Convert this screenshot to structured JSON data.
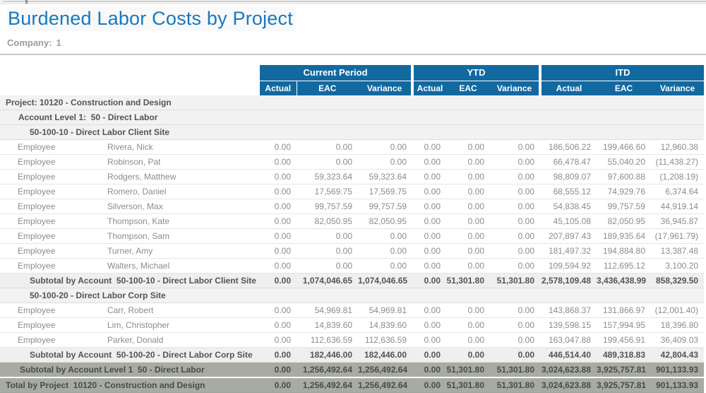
{
  "page": {
    "title": "Burdened Labor Costs by Project",
    "company_label": "Company:",
    "company_value": "1"
  },
  "colors": {
    "title_blue": "#1878be",
    "header_blue": "#1269a0",
    "grand_total_gray": "#a8aba2",
    "section_gray": "#f2f2f2"
  },
  "table": {
    "groups": [
      {
        "label": "Current Period"
      },
      {
        "label": "YTD"
      },
      {
        "label": "ITD"
      }
    ],
    "columns": [
      "Actual",
      "EAC",
      "Variance",
      "Actual",
      "EAC",
      "Variance",
      "Actual",
      "EAC",
      "Variance"
    ],
    "rows": [
      {
        "type": "project",
        "label": "Project: 10120 - Construction and Design"
      },
      {
        "type": "account-level",
        "label": "Account Level 1:  50 - Direct Labor"
      },
      {
        "type": "account",
        "label": "50-100-10 - Direct Labor Client Site"
      },
      {
        "type": "employee",
        "category": "Employee",
        "name": "Rivera, Nick",
        "values": [
          "0.00",
          "0.00",
          "0.00",
          "0.00",
          "0.00",
          "0.00",
          "186,506.22",
          "199,466.60",
          "12,960.38"
        ]
      },
      {
        "type": "employee",
        "category": "Employee",
        "name": "Robinson, Pat",
        "values": [
          "0.00",
          "0.00",
          "0.00",
          "0.00",
          "0.00",
          "0.00",
          "66,478.47",
          "55,040.20",
          "(11,438.27)"
        ]
      },
      {
        "type": "employee",
        "category": "Employee",
        "name": "Rodgers, Matthew",
        "values": [
          "0.00",
          "59,323.64",
          "59,323.64",
          "0.00",
          "0.00",
          "0.00",
          "98,809.07",
          "97,600.88",
          "(1,208.19)"
        ]
      },
      {
        "type": "employee",
        "category": "Employee",
        "name": "Romero, Daniel",
        "values": [
          "0.00",
          "17,569.75",
          "17,569.75",
          "0.00",
          "0.00",
          "0.00",
          "68,555.12",
          "74,929.76",
          "6,374.64"
        ]
      },
      {
        "type": "employee",
        "category": "Employee",
        "name": "Silverson, Max",
        "values": [
          "0.00",
          "99,757.59",
          "99,757.59",
          "0.00",
          "0.00",
          "0.00",
          "54,838.45",
          "99,757.59",
          "44,919.14"
        ]
      },
      {
        "type": "employee",
        "category": "Employee",
        "name": "Thompson, Kate",
        "values": [
          "0.00",
          "82,050.95",
          "82,050.95",
          "0.00",
          "0.00",
          "0.00",
          "45,105.08",
          "82,050.95",
          "36,945.87"
        ]
      },
      {
        "type": "employee",
        "category": "Employee",
        "name": "Thompson, Sam",
        "values": [
          "0.00",
          "0.00",
          "0.00",
          "0.00",
          "0.00",
          "0.00",
          "207,897.43",
          "189,935.64",
          "(17,961.79)"
        ]
      },
      {
        "type": "employee",
        "category": "Employee",
        "name": "Turner, Amy",
        "values": [
          "0.00",
          "0.00",
          "0.00",
          "0.00",
          "0.00",
          "0.00",
          "181,497.32",
          "194,884.80",
          "13,387.48"
        ]
      },
      {
        "type": "employee",
        "category": "Employee",
        "name": "Walters, Michael",
        "values": [
          "0.00",
          "0.00",
          "0.00",
          "0.00",
          "0.00",
          "0.00",
          "109,594.92",
          "112,695.12",
          "3,100.20"
        ]
      },
      {
        "type": "subtotal",
        "label": "Subtotal by Account  50-100-10 - Direct Labor Client Site",
        "values": [
          "0.00",
          "1,074,046.65",
          "1,074,046.65",
          "0.00",
          "51,301.80",
          "51,301.80",
          "2,578,109.48",
          "3,436,438.99",
          "858,329.50"
        ]
      },
      {
        "type": "account",
        "label": "50-100-20 - Direct Labor Corp Site"
      },
      {
        "type": "employee",
        "category": "Employee",
        "name": "Carr, Robert",
        "values": [
          "0.00",
          "54,969.81",
          "54,969.81",
          "0.00",
          "0.00",
          "0.00",
          "143,868.37",
          "131,866.97",
          "(12,001.40)"
        ]
      },
      {
        "type": "employee",
        "category": "Employee",
        "name": "Lim, Christopher",
        "values": [
          "0.00",
          "14,839.60",
          "14,839.60",
          "0.00",
          "0.00",
          "0.00",
          "139,598.15",
          "157,994.95",
          "18,396.80"
        ]
      },
      {
        "type": "employee",
        "category": "Employee",
        "name": "Parker, Donald",
        "values": [
          "0.00",
          "112,636.59",
          "112,636.59",
          "0.00",
          "0.00",
          "0.00",
          "163,047.88",
          "199,456.91",
          "36,409.03"
        ]
      },
      {
        "type": "subtotal",
        "label": "Subtotal by Account  50-100-20 - Direct Labor Corp Site",
        "values": [
          "0.00",
          "182,446.00",
          "182,446.00",
          "0.00",
          "0.00",
          "0.00",
          "446,514.40",
          "489,318.83",
          "42,804.43"
        ]
      },
      {
        "type": "level1-subtotal",
        "label": "Subtotal by Account Level 1  50 - Direct Labor",
        "values": [
          "0.00",
          "1,256,492.64",
          "1,256,492.64",
          "0.00",
          "51,301.80",
          "51,301.80",
          "3,024,623.88",
          "3,925,757.81",
          "901,133.93"
        ]
      },
      {
        "type": "project-total",
        "label": "Total by Project  10120 - Construction and Design",
        "values": [
          "0.00",
          "1,256,492.64",
          "1,256,492.64",
          "0.00",
          "51,301.80",
          "51,301.80",
          "3,024,623.88",
          "3,925,757.81",
          "901,133.93"
        ]
      }
    ]
  }
}
